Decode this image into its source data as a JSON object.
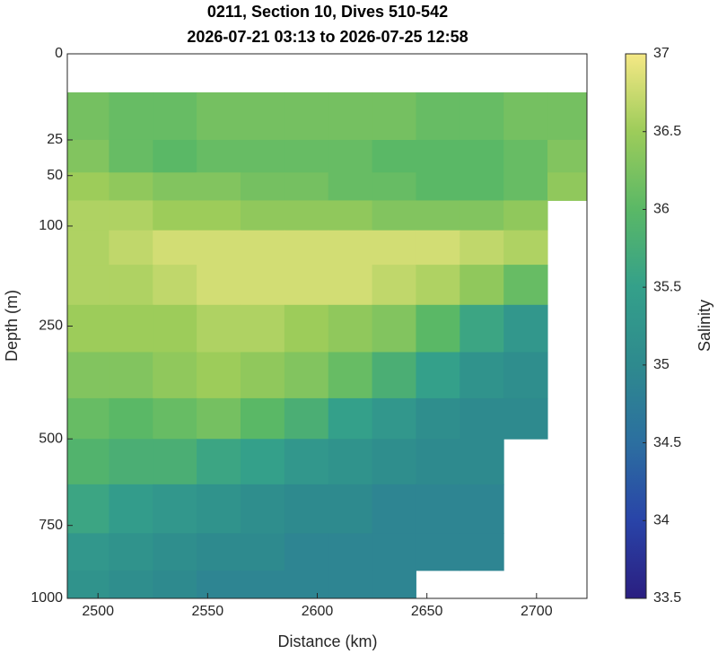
{
  "chart_data": {
    "type": "heatmap",
    "title": "0211, Section 10, Dives 510-542",
    "subtitle": "2026-07-21 03:13 to 2026-07-25 12:58",
    "x_label": "Distance (km)",
    "y_label": "Depth (m)",
    "colorbar_label": "Salinity",
    "yscale": "sqrt",
    "y_reversed": true,
    "xlim": [
      2486,
      2723
    ],
    "xticks": [
      2500,
      2550,
      2600,
      2650,
      2700
    ],
    "ylim": [
      0,
      1000
    ],
    "yticks": [
      0,
      25,
      50,
      100,
      250,
      500,
      750,
      1000
    ],
    "clim": [
      33.5,
      37
    ],
    "cticks": [
      33.5,
      34,
      34.5,
      35,
      35.5,
      36,
      36.5,
      37
    ],
    "colormap": [
      "#2a1e80",
      "#2944a8",
      "#2c6fa0",
      "#2e8a8e",
      "#34a08a",
      "#5ab866",
      "#9dcc5a",
      "#f5e885"
    ],
    "x": [
      2495,
      2515,
      2535,
      2555,
      2575,
      2595,
      2615,
      2635,
      2655,
      2675,
      2695,
      2715
    ],
    "depth": [
      15,
      35,
      60,
      85,
      125,
      175,
      250,
      350,
      450,
      550,
      700,
      850,
      950
    ],
    "values": [
      [
        36.2,
        36.1,
        36.1,
        36.2,
        36.2,
        36.2,
        36.2,
        36.2,
        36.1,
        36.1,
        36.2,
        36.2
      ],
      [
        36.3,
        36.1,
        36.0,
        36.1,
        36.1,
        36.1,
        36.1,
        36.0,
        36.0,
        36.0,
        36.1,
        36.3
      ],
      [
        36.5,
        36.4,
        36.3,
        36.3,
        36.2,
        36.2,
        36.1,
        36.1,
        36.0,
        36.0,
        36.1,
        36.4
      ],
      [
        36.6,
        36.6,
        36.5,
        36.5,
        36.4,
        36.4,
        36.4,
        36.3,
        36.3,
        36.3,
        36.4,
        null
      ],
      [
        36.6,
        36.7,
        36.8,
        36.8,
        36.8,
        36.8,
        36.8,
        36.8,
        36.8,
        36.7,
        36.6,
        null
      ],
      [
        36.6,
        36.6,
        36.7,
        36.8,
        36.8,
        36.8,
        36.8,
        36.7,
        36.6,
        36.4,
        36.1,
        null
      ],
      [
        36.5,
        36.5,
        36.5,
        36.6,
        36.6,
        36.5,
        36.4,
        36.3,
        36.0,
        35.6,
        35.3,
        null
      ],
      [
        36.3,
        36.3,
        36.4,
        36.5,
        36.4,
        36.3,
        36.1,
        35.8,
        35.5,
        35.2,
        35.1,
        null
      ],
      [
        36.1,
        36.0,
        36.1,
        36.2,
        36.0,
        35.8,
        35.5,
        35.3,
        35.1,
        35.0,
        35.0,
        null
      ],
      [
        35.9,
        35.8,
        35.8,
        35.6,
        35.5,
        35.3,
        35.2,
        35.1,
        35.0,
        35.0,
        null,
        null
      ],
      [
        35.6,
        35.4,
        35.3,
        35.2,
        35.1,
        35.0,
        35.0,
        34.9,
        34.9,
        34.9,
        null,
        null
      ],
      [
        35.3,
        35.2,
        35.1,
        35.0,
        35.0,
        34.9,
        34.9,
        34.9,
        34.9,
        34.9,
        null,
        null
      ],
      [
        35.2,
        35.1,
        35.0,
        34.9,
        34.9,
        34.9,
        34.9,
        34.9,
        null,
        null,
        null,
        null
      ]
    ]
  }
}
